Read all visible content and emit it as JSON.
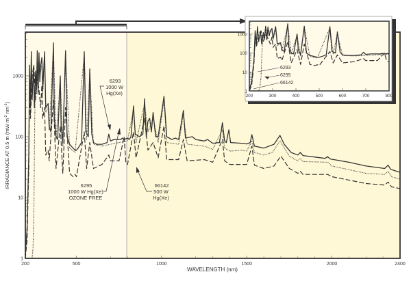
{
  "chart_data": {
    "type": "line",
    "xlabel": "WAVELENGTH (nm)",
    "ylabel": "IRRADIANCE AT 0.5 m (mW m-2 nm-1)",
    "x_scale": "linear",
    "y_scale": "log",
    "xlim": [
      200,
      2400
    ],
    "ylim": [
      1,
      5000
    ],
    "x_ticks": [
      "200",
      "500",
      "1000",
      "1500",
      "2000",
      "2400"
    ],
    "y_ticks": [
      "1",
      "10",
      "100",
      "1000"
    ],
    "grid": false,
    "background_colors": {
      "uv_visible_region": "#fffbe8",
      "infrared_region": "#fff8d6"
    },
    "region_boundary_nm": 800,
    "annotations": [
      {
        "series": "6293",
        "lines": [
          "6293",
          "1000 W",
          "Hg(Xe)"
        ]
      },
      {
        "series": "6295",
        "lines": [
          "6295",
          "1000 W Hg(Xe)",
          "OZONE FREE"
        ]
      },
      {
        "series": "66142",
        "lines": [
          "66142",
          "500 W",
          "Hg(Xe)"
        ]
      }
    ],
    "series": [
      {
        "name": "6293",
        "style": "solid",
        "points": [
          [
            200,
            1.2
          ],
          [
            210,
            3
          ],
          [
            220,
            50
          ],
          [
            225,
            1500
          ],
          [
            230,
            300
          ],
          [
            235,
            2500
          ],
          [
            240,
            400
          ],
          [
            248,
            1400
          ],
          [
            253,
            300
          ],
          [
            260,
            1200
          ],
          [
            265,
            600
          ],
          [
            270,
            2600
          ],
          [
            275,
            500
          ],
          [
            280,
            2400
          ],
          [
            285,
            800
          ],
          [
            290,
            1500
          ],
          [
            297,
            2000
          ],
          [
            302,
            600
          ],
          [
            313,
            2500
          ],
          [
            320,
            300
          ],
          [
            334,
            350
          ],
          [
            340,
            150
          ],
          [
            350,
            120
          ],
          [
            365,
            3500
          ],
          [
            370,
            200
          ],
          [
            380,
            100
          ],
          [
            390,
            90
          ],
          [
            405,
            1000
          ],
          [
            410,
            150
          ],
          [
            420,
            80
          ],
          [
            436,
            2600
          ],
          [
            445,
            100
          ],
          [
            460,
            75
          ],
          [
            480,
            65
          ],
          [
            492,
            60
          ],
          [
            500,
            60
          ],
          [
            510,
            65
          ],
          [
            530,
            80
          ],
          [
            546,
            2500
          ],
          [
            555,
            120
          ],
          [
            570,
            100
          ],
          [
            578,
            1300
          ],
          [
            590,
            110
          ],
          [
            600,
            80
          ],
          [
            620,
            75
          ],
          [
            650,
            75
          ],
          [
            680,
            80
          ],
          [
            690,
            110
          ],
          [
            700,
            85
          ],
          [
            720,
            90
          ],
          [
            740,
            90
          ],
          [
            760,
            90
          ],
          [
            770,
            95
          ],
          [
            780,
            90
          ],
          [
            800,
            95
          ],
          [
            810,
            90
          ],
          [
            820,
            100
          ],
          [
            835,
            320
          ],
          [
            845,
            110
          ],
          [
            870,
            100
          ],
          [
            890,
            110
          ],
          [
            900,
            420
          ],
          [
            910,
            100
          ],
          [
            920,
            180
          ],
          [
            930,
            200
          ],
          [
            940,
            120
          ],
          [
            950,
            250
          ],
          [
            965,
            100
          ],
          [
            980,
            100
          ],
          [
            1014,
            460
          ],
          [
            1030,
            100
          ],
          [
            1060,
            90
          ],
          [
            1080,
            95
          ],
          [
            1100,
            90
          ],
          [
            1128,
            270
          ],
          [
            1140,
            95
          ],
          [
            1180,
            100
          ],
          [
            1200,
            90
          ],
          [
            1250,
            85
          ],
          [
            1270,
            90
          ],
          [
            1300,
            78
          ],
          [
            1340,
            80
          ],
          [
            1357,
            170
          ],
          [
            1370,
            85
          ],
          [
            1380,
            80
          ],
          [
            1395,
            130
          ],
          [
            1405,
            80
          ],
          [
            1470,
            78
          ],
          [
            1500,
            76
          ],
          [
            1520,
            80
          ],
          [
            1530,
            108
          ],
          [
            1545,
            70
          ],
          [
            1600,
            65
          ],
          [
            1660,
            75
          ],
          [
            1695,
            105
          ],
          [
            1720,
            75
          ],
          [
            1760,
            55
          ],
          [
            1800,
            50
          ],
          [
            1815,
            55
          ],
          [
            1830,
            49
          ],
          [
            1960,
            44
          ],
          [
            1975,
            47
          ],
          [
            1990,
            43
          ],
          [
            2100,
            38
          ],
          [
            2200,
            33
          ],
          [
            2310,
            30
          ],
          [
            2330,
            34
          ],
          [
            2345,
            29
          ],
          [
            2400,
            26
          ]
        ]
      },
      {
        "name": "6295",
        "style": "dotted",
        "points": [
          [
            200,
            1
          ],
          [
            240,
            1
          ],
          [
            245,
            1.5
          ],
          [
            250,
            5
          ],
          [
            255,
            200
          ],
          [
            260,
            800
          ],
          [
            265,
            500
          ],
          [
            270,
            1400
          ],
          [
            280,
            1800
          ],
          [
            290,
            1200
          ],
          [
            297,
            1500
          ],
          [
            302,
            500
          ],
          [
            313,
            2000
          ],
          [
            320,
            250
          ],
          [
            334,
            300
          ],
          [
            340,
            130
          ],
          [
            365,
            3000
          ],
          [
            380,
            90
          ],
          [
            405,
            900
          ],
          [
            420,
            70
          ],
          [
            436,
            2300
          ],
          [
            460,
            65
          ],
          [
            492,
            55
          ],
          [
            546,
            2200
          ],
          [
            560,
            90
          ],
          [
            578,
            1100
          ],
          [
            600,
            75
          ],
          [
            650,
            70
          ],
          [
            700,
            75
          ],
          [
            750,
            80
          ],
          [
            800,
            85
          ],
          [
            835,
            280
          ],
          [
            850,
            80
          ],
          [
            900,
            350
          ],
          [
            920,
            120
          ],
          [
            950,
            200
          ],
          [
            980,
            80
          ],
          [
            1014,
            400
          ],
          [
            1030,
            80
          ],
          [
            1100,
            75
          ],
          [
            1128,
            230
          ],
          [
            1150,
            75
          ],
          [
            1250,
            70
          ],
          [
            1300,
            62
          ],
          [
            1357,
            130
          ],
          [
            1370,
            65
          ],
          [
            1400,
            58
          ],
          [
            1470,
            60
          ],
          [
            1500,
            58
          ],
          [
            1530,
            85
          ],
          [
            1545,
            55
          ],
          [
            1600,
            50
          ],
          [
            1650,
            55
          ],
          [
            1695,
            85
          ],
          [
            1750,
            48
          ],
          [
            1800,
            40
          ],
          [
            1815,
            44
          ],
          [
            1830,
            39
          ],
          [
            1975,
            38
          ],
          [
            2000,
            33
          ],
          [
            2200,
            25
          ],
          [
            2310,
            24
          ],
          [
            2330,
            27
          ],
          [
            2350,
            22
          ],
          [
            2400,
            20
          ]
        ]
      },
      {
        "name": "66142",
        "style": "dashed",
        "points": [
          [
            200,
            1
          ],
          [
            210,
            2
          ],
          [
            220,
            30
          ],
          [
            225,
            800
          ],
          [
            230,
            200
          ],
          [
            240,
            1000
          ],
          [
            250,
            1500
          ],
          [
            260,
            400
          ],
          [
            270,
            900
          ],
          [
            280,
            600
          ],
          [
            290,
            300
          ],
          [
            297,
            700
          ],
          [
            302,
            200
          ],
          [
            313,
            300
          ],
          [
            320,
            50
          ],
          [
            334,
            60
          ],
          [
            340,
            40
          ],
          [
            365,
            400
          ],
          [
            380,
            30
          ],
          [
            405,
            150
          ],
          [
            420,
            25
          ],
          [
            436,
            300
          ],
          [
            460,
            25
          ],
          [
            480,
            22
          ],
          [
            492,
            24
          ],
          [
            500,
            22
          ],
          [
            546,
            120
          ],
          [
            560,
            30
          ],
          [
            578,
            80
          ],
          [
            600,
            30
          ],
          [
            650,
            35
          ],
          [
            690,
            50
          ],
          [
            700,
            40
          ],
          [
            750,
            40
          ],
          [
            780,
            100
          ],
          [
            790,
            38
          ],
          [
            800,
            35
          ],
          [
            835,
            120
          ],
          [
            850,
            45
          ],
          [
            900,
            200
          ],
          [
            920,
            60
          ],
          [
            950,
            80
          ],
          [
            980,
            45
          ],
          [
            1014,
            150
          ],
          [
            1030,
            42
          ],
          [
            1100,
            42
          ],
          [
            1128,
            90
          ],
          [
            1150,
            40
          ],
          [
            1250,
            42
          ],
          [
            1300,
            38
          ],
          [
            1357,
            90
          ],
          [
            1370,
            40
          ],
          [
            1400,
            35
          ],
          [
            1500,
            35
          ],
          [
            1530,
            70
          ],
          [
            1545,
            34
          ],
          [
            1600,
            30
          ],
          [
            1660,
            33
          ],
          [
            1700,
            48
          ],
          [
            1750,
            30
          ],
          [
            1800,
            25
          ],
          [
            1815,
            27
          ],
          [
            1830,
            24
          ],
          [
            1975,
            24
          ],
          [
            2000,
            22
          ],
          [
            2200,
            17
          ],
          [
            2310,
            16
          ],
          [
            2330,
            18
          ],
          [
            2350,
            15
          ],
          [
            2400,
            14
          ]
        ]
      }
    ],
    "inset": {
      "xlim": [
        200,
        800
      ],
      "ylim": [
        1,
        5000
      ],
      "x_ticks": [
        "200",
        "300",
        "400",
        "500",
        "600",
        "700",
        "800"
      ],
      "y_ticks": [
        "1",
        "10",
        "100",
        "1000"
      ],
      "labels": [
        "6293",
        "6295",
        "66142"
      ]
    }
  }
}
